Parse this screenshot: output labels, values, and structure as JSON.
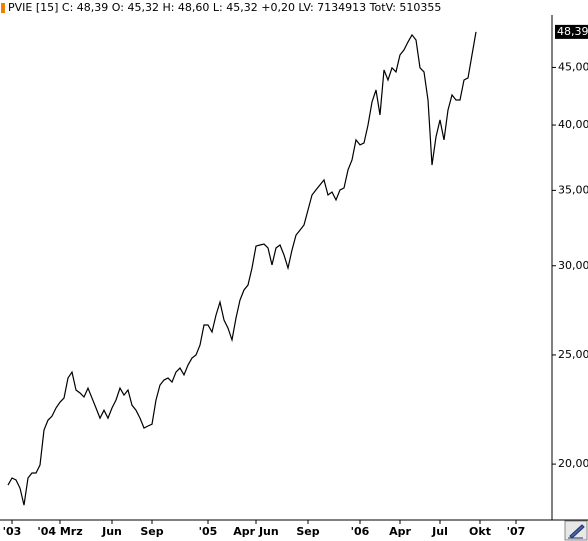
{
  "chart_data": {
    "type": "line",
    "title": "PVIE [15] C: 48,39 O: 45,32 H: 48,60 L: 45,32 +0,20 LV: 7134913 TotV: 510355",
    "color": "#000000",
    "log_scale": true,
    "categories": [
      null,
      "'03",
      null,
      null,
      null,
      null,
      null,
      null,
      null,
      null,
      null,
      null,
      null,
      "'04 Mrz",
      null,
      null,
      null,
      null,
      null,
      null,
      null,
      null,
      null,
      null,
      null,
      null,
      "Jun",
      null,
      null,
      null,
      null,
      null,
      null,
      null,
      null,
      null,
      "Sep",
      null,
      null,
      null,
      null,
      null,
      null,
      null,
      null,
      null,
      null,
      null,
      null,
      null,
      "'05",
      null,
      null,
      null,
      null,
      null,
      null,
      null,
      null,
      null,
      null,
      null,
      "Apr Jun",
      null,
      null,
      null,
      null,
      null,
      null,
      null,
      null,
      null,
      null,
      null,
      null,
      "Sep",
      null,
      null,
      null,
      null,
      null,
      null,
      null,
      null,
      null,
      null,
      null,
      null,
      "'06",
      null,
      null,
      null,
      null,
      null,
      null,
      null,
      null,
      null,
      "Apr",
      null,
      null,
      null,
      null,
      null,
      null,
      null,
      null,
      null,
      "Jul",
      null,
      null,
      null,
      null,
      null,
      null,
      null,
      null,
      null,
      "Okt",
      null,
      null,
      null,
      null,
      null,
      null,
      null,
      null,
      "'07"
    ],
    "values": [
      19.16,
      19.44,
      19.36,
      19.04,
      18.39,
      19.44,
      19.64,
      19.64,
      19.96,
      21.44,
      21.88,
      22.06,
      22.43,
      22.7,
      22.89,
      23.85,
      24.14,
      23.27,
      23.13,
      22.94,
      23.36,
      22.89,
      22.43,
      21.97,
      22.33,
      21.97,
      22.43,
      22.8,
      23.36,
      23.03,
      23.27,
      22.56,
      22.33,
      21.97,
      21.53,
      21.62,
      21.7,
      22.8,
      23.51,
      23.75,
      23.85,
      23.65,
      24.14,
      24.34,
      24.0,
      24.49,
      24.84,
      25.0,
      25.51,
      26.58,
      26.58,
      26.2,
      27.12,
      27.85,
      26.85,
      26.41,
      25.78,
      26.96,
      27.97,
      28.55,
      28.84,
      29.86,
      31.23,
      31.3,
      31.36,
      31.11,
      30.05,
      31.11,
      31.3,
      30.67,
      29.86,
      30.98,
      31.94,
      32.27,
      32.61,
      33.62,
      34.67,
      35.03,
      35.39,
      35.75,
      34.67,
      34.88,
      34.32,
      35.03,
      35.17,
      36.49,
      37.24,
      38.8,
      38.41,
      38.56,
      40.0,
      41.93,
      42.97,
      40.83,
      44.77,
      43.86,
      44.96,
      44.59,
      46.17,
      46.64,
      47.41,
      48.09,
      47.6,
      44.96,
      44.59,
      42.1,
      36.86,
      39.04,
      40.42,
      38.8,
      41.25,
      42.54,
      42.1,
      42.1,
      43.86,
      44.04,
      46.17,
      48.39,
      null,
      null,
      null,
      null,
      null,
      null,
      null,
      null,
      null,
      null
    ],
    "last_value": {
      "value": 48.39,
      "label": "48,39"
    },
    "ylim": [
      17.84,
      50.09
    ],
    "yticks": [
      {
        "value": 20,
        "label": "20,00"
      },
      {
        "value": 25,
        "label": "25,00"
      },
      {
        "value": 30,
        "label": "30,00"
      },
      {
        "value": 35,
        "label": "35,00"
      },
      {
        "value": 40,
        "label": "40,00"
      },
      {
        "value": 45,
        "label": "45,00"
      }
    ]
  }
}
